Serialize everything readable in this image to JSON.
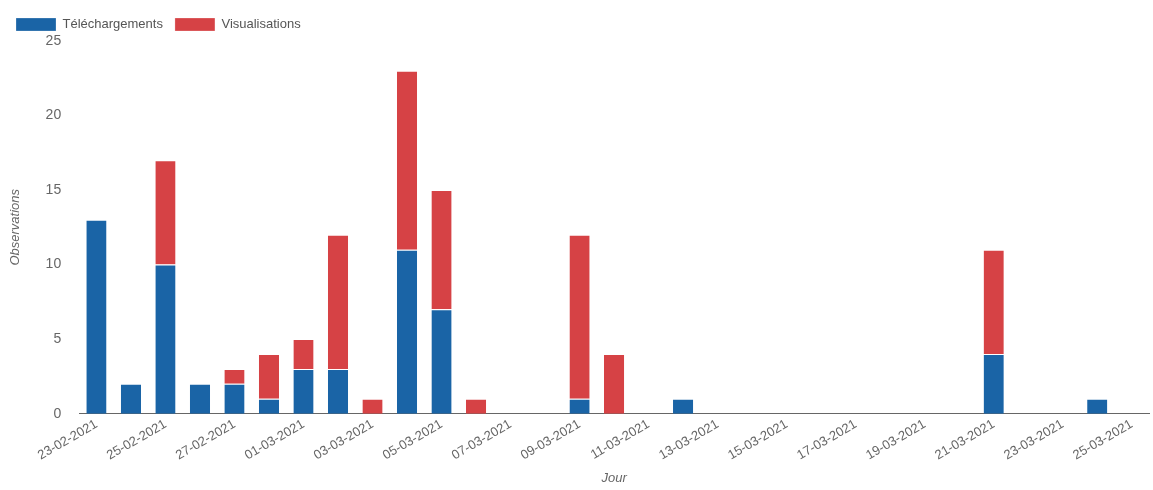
{
  "chart_data": {
    "type": "bar",
    "stacked": true,
    "xlabel": "Jour",
    "ylabel": "Observations",
    "categories": [
      "23-02-2021",
      null,
      "25-02-2021",
      null,
      "27-02-2021",
      null,
      "01-03-2021",
      null,
      "03-03-2021",
      null,
      "05-03-2021",
      null,
      "07-03-2021",
      null,
      "09-03-2021",
      null,
      "11-03-2021",
      null,
      "13-03-2021",
      null,
      "15-03-2021",
      null,
      "17-03-2021",
      null,
      "19-03-2021",
      null,
      "21-03-2021",
      null,
      "23-03-2021",
      null,
      "25-03-2021"
    ],
    "series": [
      {
        "name": "Téléchargements",
        "color": "#1a64a6",
        "values": [
          13,
          2,
          10,
          2,
          2,
          1,
          3,
          3,
          0,
          11,
          7,
          0,
          0,
          0,
          1,
          0,
          0,
          1,
          0,
          0,
          0,
          0,
          0,
          0,
          0,
          0,
          4,
          0,
          0,
          1,
          0
        ]
      },
      {
        "name": "Visualisations",
        "color": "#d64245",
        "values": [
          0,
          0,
          7,
          0,
          1,
          3,
          2,
          9,
          1,
          12,
          8,
          1,
          0,
          0,
          11,
          4,
          0,
          0,
          0,
          0,
          0,
          0,
          0,
          0,
          0,
          0,
          7,
          0,
          0,
          0,
          0
        ]
      }
    ],
    "ylim": [
      0,
      25
    ],
    "yticks": [
      0,
      5,
      10,
      15,
      20,
      25
    ],
    "grid": false,
    "legend": "top left"
  }
}
